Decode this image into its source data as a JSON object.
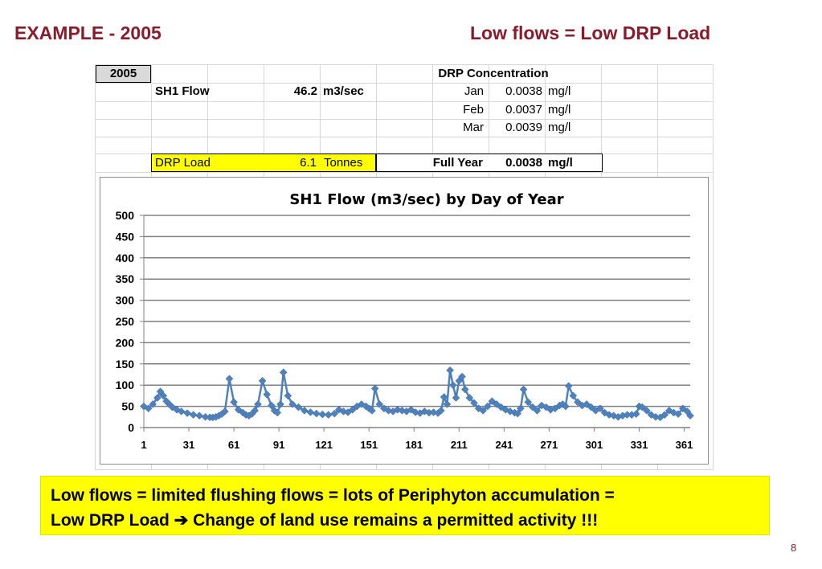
{
  "slide": {
    "title_left": "EXAMPLE - 2005",
    "title_right": "Low flows = Low DRP Load",
    "page_number": "8"
  },
  "table": {
    "year": "2005",
    "drp_header": "DRP Concentration",
    "flow_label": "SH1 Flow",
    "flow_value": "46.2",
    "flow_unit": "m3/sec",
    "months": [
      {
        "label": "Jan",
        "value": "0.0038",
        "unit": "mg/l"
      },
      {
        "label": "Feb",
        "value": "0.0037",
        "unit": "mg/l"
      },
      {
        "label": "Mar",
        "value": "0.0039",
        "unit": "mg/l"
      }
    ],
    "load_label": "DRP Load",
    "load_value": "6.1",
    "load_unit": "Tonnes",
    "full_year_label": "Full Year",
    "full_year_value": "0.0038",
    "full_year_unit": "mg/l"
  },
  "callout": {
    "line1": "Low flows = limited flushing flows = lots of Periphyton accumulation =",
    "line2_a": "Low DRP Load",
    "arrow": "➔",
    "line2_b": "Change of land use remains a permitted activity !!!"
  },
  "chart_data": {
    "type": "line",
    "title": "SH1 Flow (m3/sec) by Day of Year",
    "xlabel": "",
    "ylabel": "",
    "ylim": [
      0,
      500
    ],
    "yticks": [
      0,
      50,
      100,
      150,
      200,
      250,
      300,
      350,
      400,
      450,
      500
    ],
    "xticks": [
      1,
      31,
      61,
      91,
      121,
      151,
      181,
      211,
      241,
      271,
      301,
      331,
      361
    ],
    "xlim": [
      1,
      365
    ],
    "grid": "horizontal",
    "series_color": "#4f81bd",
    "marker": "diamond",
    "series": [
      {
        "name": "",
        "x": [
          1,
          4,
          7,
          10,
          12,
          14,
          16,
          18,
          20,
          23,
          26,
          30,
          34,
          38,
          42,
          45,
          47,
          49,
          51,
          53,
          55,
          58,
          61,
          64,
          67,
          69,
          71,
          73,
          75,
          77,
          80,
          83,
          86,
          88,
          90,
          92,
          94,
          97,
          100,
          104,
          108,
          112,
          116,
          120,
          124,
          128,
          131,
          134,
          137,
          140,
          143,
          146,
          149,
          151,
          153,
          155,
          158,
          161,
          164,
          167,
          170,
          173,
          176,
          179,
          182,
          185,
          188,
          191,
          194,
          197,
          199,
          201,
          203,
          205,
          207,
          209,
          211,
          213,
          215,
          218,
          221,
          224,
          227,
          230,
          233,
          236,
          239,
          242,
          245,
          248,
          250,
          252,
          254,
          257,
          260,
          263,
          266,
          269,
          272,
          275,
          278,
          280,
          282,
          284,
          287,
          290,
          293,
          296,
          299,
          302,
          305,
          308,
          311,
          314,
          317,
          320,
          323,
          326,
          329,
          331,
          333,
          336,
          339,
          342,
          345,
          348,
          351,
          354,
          357,
          360,
          363,
          365
        ],
        "y": [
          50,
          45,
          55,
          70,
          85,
          75,
          62,
          55,
          48,
          42,
          38,
          34,
          30,
          28,
          25,
          24,
          24,
          25,
          28,
          32,
          38,
          115,
          60,
          42,
          35,
          30,
          28,
          32,
          40,
          55,
          110,
          78,
          52,
          40,
          35,
          55,
          130,
          75,
          55,
          48,
          40,
          36,
          33,
          31,
          30,
          33,
          42,
          38,
          36,
          42,
          50,
          55,
          50,
          45,
          40,
          92,
          55,
          45,
          40,
          38,
          42,
          40,
          38,
          42,
          36,
          34,
          38,
          35,
          36,
          34,
          40,
          72,
          55,
          135,
          100,
          70,
          110,
          120,
          90,
          70,
          58,
          45,
          40,
          50,
          62,
          55,
          48,
          42,
          38,
          35,
          33,
          45,
          90,
          60,
          48,
          40,
          52,
          48,
          42,
          45,
          52,
          55,
          50,
          98,
          75,
          60,
          52,
          55,
          48,
          40,
          45,
          35,
          30,
          28,
          25,
          28,
          30,
          30,
          32,
          50,
          48,
          40,
          30,
          25,
          24,
          30,
          40,
          35,
          32,
          45,
          38,
          28
        ]
      }
    ]
  }
}
